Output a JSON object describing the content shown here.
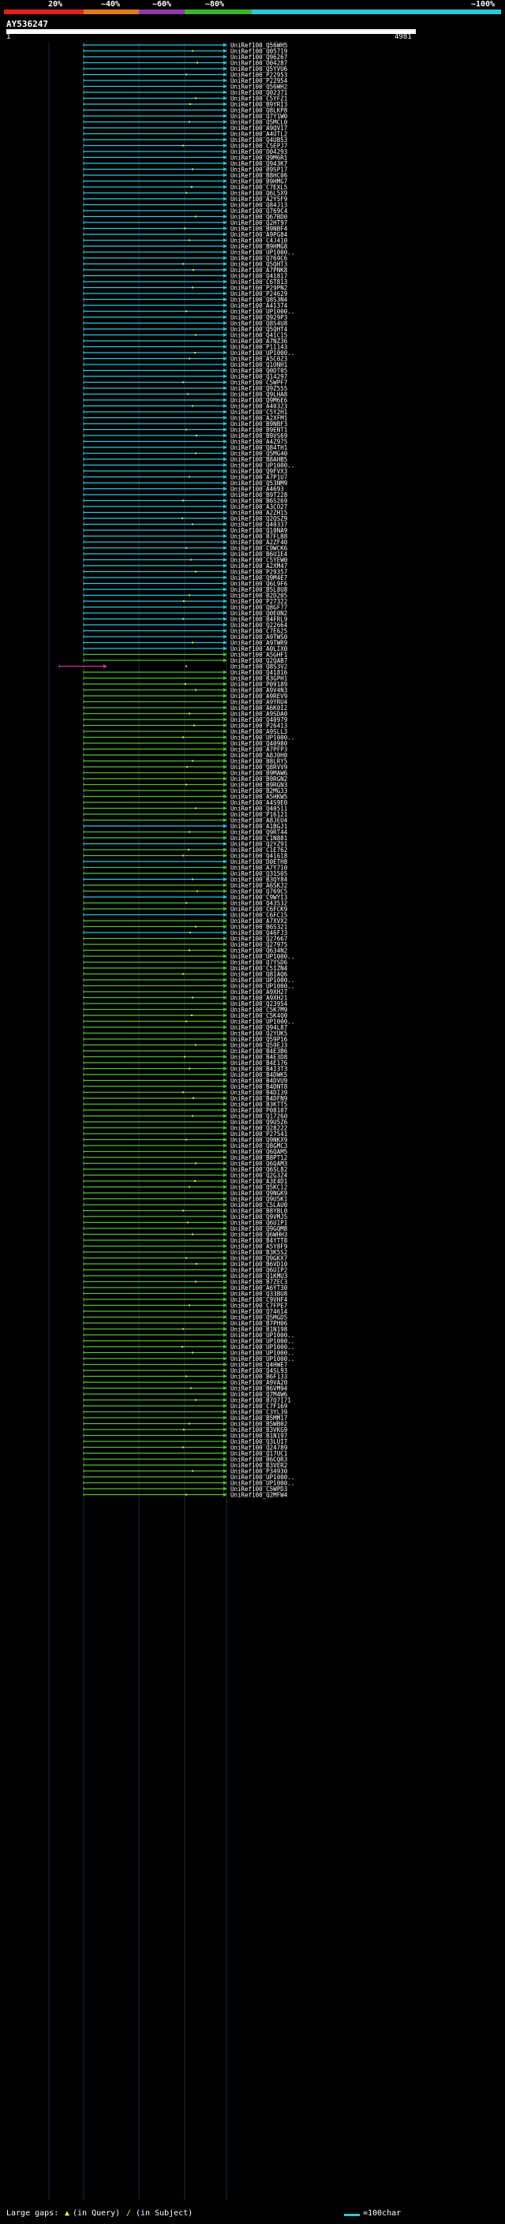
{
  "header": {
    "scale_labels": [
      "20%",
      "~40%",
      "~60%",
      "~80%",
      "~100%"
    ],
    "scale_colors": [
      "#e0221f",
      "#e07a1c",
      "#8f3aa5",
      "#3db42a",
      "#2bc6dd"
    ],
    "query_name": "AY536247",
    "tick_start": "1",
    "tick_end": "4981"
  },
  "colors": {
    "cyan": "#2bc6dd",
    "green": "#4fc131",
    "magenta": "#c3379c",
    "gap_marker": "#e8e85a",
    "label": "#ffffff"
  },
  "hits": [
    "UniRef100_Q56WH5",
    "UniRef100_Q05719",
    "UniRef100_Q96267",
    "UniRef100_O04287",
    "UniRef100_Q5YVU6",
    "UniRef100_P22953",
    "UniRef100_P22954",
    "UniRef100_Q56WH2",
    "UniRef100_Q02371",
    "UniRef100_C5YFZ1",
    "UniRef100_B9YRI3",
    "UniRef100_Q8LKP8",
    "UniRef100_Q7Y1W0",
    "UniRef100_Q5MCL0",
    "UniRef100_A9QV17",
    "UniRef100_A4UTL2",
    "UniRef100_Q4UB53",
    "UniRef100_C5EPJ7",
    "UniRef100_O04293",
    "UniRef100_Q9M6R1",
    "UniRef100_Q943K7",
    "UniRef100_B9SP17",
    "UniRef100_B8HC06",
    "UniRef100_B9HMG7",
    "UniRef100_C7EXL5",
    "UniRef100_Q6L5X9",
    "UniRef100_A2Y5F9",
    "UniRef100_Q84J13",
    "UniRef100_Q769C4",
    "UniRef100_Q67BD0",
    "UniRef100_Q2HT97",
    "UniRef100_B9NBF4",
    "UniRef100_A9PG84",
    "UniRef100_C4J410",
    "UniRef100_B9HMG8",
    "UniRef100_UP1000..",
    "UniRef100_Q769C6",
    "UniRef100_Q5QHT3",
    "UniRef100_A7PNK8",
    "UniRef100_Q41817",
    "UniRef100_C6T813",
    "UniRef100_P29PN2",
    "UniRef100_P24629",
    "UniRef100_Q8S3N4",
    "UniRef100_A41374",
    "UniRef100_UP1000..",
    "UniRef100_Q929P3",
    "UniRef100_Q8S4U8",
    "UniRef100_Q5QHT4",
    "UniRef100_Q41C15",
    "UniRef100_A7NZ36",
    "UniRef100_P11143",
    "UniRef100_UP1000..",
    "UniRef100_A5C0Z3",
    "UniRef100_Q1ONH1",
    "UniRef100_Q0DT05",
    "UniRef100_Q14297",
    "UniRef100_C5WPF7",
    "UniRef100_Q9Z555",
    "UniRef100_Q9LHA8",
    "UniRef100_Q9M6E6",
    "UniRef100_A40323",
    "UniRef100_C5Y2H1",
    "UniRef100_A2XFM1",
    "UniRef100_B9NBF3",
    "UniRef100_B9ENT1",
    "UniRef100_B9VS69",
    "UniRef100_A4Z975",
    "UniRef100_Q84TH1",
    "UniRef100_Q5MG40",
    "UniRef100_B8AHB5",
    "UniRef100_UP1000..",
    "UniRef100_Q9FVX3",
    "UniRef100_A7P1U7",
    "UniRef100_Q53NM9",
    "UniRef100_A4693",
    "UniRef100_B9T228",
    "UniRef100_B6S269",
    "UniRef100_A3CO27",
    "UniRef100_A2ZH15",
    "UniRef100_Q2QSZ9",
    "UniRef100_Q40337",
    "UniRef100_Q10NA9",
    "UniRef100_B7FLB8",
    "UniRef100_A2ZF40",
    "UniRef100_C9WCK6",
    "UniRef100_B6U1E4",
    "UniRef100_C5YEW0",
    "UniRef100_A2XM47",
    "UniRef100_P29357",
    "UniRef100_Q9M4E7",
    "UniRef100_Q6L9F6",
    "UniRef100_B5L8U8",
    "UniRef100_B2D205",
    "UniRef100_P27322",
    "UniRef100_Q8GF77",
    "UniRef100_Q0E0N2",
    "UniRef100_B4FRL9",
    "UniRef100_Q22664",
    "UniRef100_C7E625",
    "UniRef100_A9TWS0",
    "UniRef100_A9TWR9",
    "UniRef100_A0LIX0",
    "UniRef100_A5GHF1",
    "UniRef100_Q2QAB7",
    "UniRef100_Q8S3V2",
    "UniRef100_Q41816",
    "UniRef100_B3GPH1",
    "UniRef100_P09189",
    "UniRef100_A9V4N3",
    "UniRef100_A9REV9",
    "UniRef100_A9YRU4",
    "UniRef100_A6K0I2",
    "UniRef100_A9SDA0",
    "UniRef100_Q40979",
    "UniRef100_P26413",
    "UniRef100_A9SLL3",
    "UniRef100_UP1000..",
    "UniRef100_Q40980",
    "UniRef100_A7PFP3",
    "UniRef100_A8J0H0",
    "UniRef100_B8LRY5",
    "UniRef100_Q8RVV9",
    "UniRef100_B9MAW6",
    "UniRef100_B9RGN2",
    "UniRef100_B9RGN3",
    "UniRef100_B2MG33",
    "UniRef100_A5HKW5",
    "UniRef100_A4S9E0",
    "UniRef100_Q40511",
    "UniRef100_P16121",
    "UniRef100_A8JEU4",
    "UniRef100_A1BGJ1",
    "UniRef100_Q9RT44",
    "UniRef100_C1N881",
    "UniRef100_Q2YZ91",
    "UniRef100_C1E762",
    "UniRef100_Q41618",
    "UniRef100_D0ETH8",
    "UniRef100_A7Y710",
    "UniRef100_Q31505",
    "UniRef100_B3QY84",
    "UniRef100_A6SKJ2",
    "UniRef100_Q769C5",
    "UniRef100_C9WYI3",
    "UniRef100_Q43532",
    "UniRef100_C6FCK9",
    "UniRef100_C6FC15",
    "UniRef100_A7XVX2",
    "UniRef100_B6S321",
    "UniRef100_Q46FJ3",
    "UniRef100_Q27667",
    "UniRef100_Q27975",
    "UniRef100_Q634N2",
    "UniRef100_UP1000..",
    "UniRef100_Q7YSD6",
    "UniRef100_C5IZN4",
    "UniRef100_Q8IAQ6",
    "UniRef100_UP1000..",
    "UniRef100_UP1000..",
    "UniRef100_A9XH27",
    "UniRef100_A9XH21",
    "UniRef100_Q23954",
    "UniRef100_C5K7M9",
    "UniRef100_C5K4Q0",
    "UniRef100_UP1000..",
    "UniRef100_Q94L87",
    "UniRef100_Q2YUK5",
    "UniRef100_Q59P16",
    "UniRef100_Q59EJ3",
    "UniRef100_B4E3B6",
    "UniRef100_B4E3D8",
    "UniRef100_B4E176",
    "UniRef100_B4I3T3",
    "UniRef100_B4DWK5",
    "UniRef100_B4DVU9",
    "UniRef100_B4DNT8",
    "UniRef100_B4DI39",
    "UniRef100_B4DFN9",
    "UniRef100_B3KTT5",
    "UniRef100_P08107",
    "UniRef100_Q17260",
    "UniRef100_Q9U5Z6",
    "UniRef100_Q28222",
    "UniRef100_P27541",
    "UniRef100_Q9NKX9",
    "UniRef100_Q8GMC3",
    "UniRef100_Q6QAM5",
    "UniRef100_B8PT12",
    "UniRef100_Q6QAM3",
    "UniRef100_Q6SL82",
    "UniRef100_Q2G3Z4",
    "UniRef100_A3E4D1",
    "UniRef100_Q5KC12",
    "UniRef100_Q9NGK9",
    "UniRef100_Q9U5K1",
    "UniRef100_C5LAU0",
    "UniRef100_B8YBL0",
    "UniRef100_Q9VMJ5",
    "UniRef100_Q6UIP1",
    "UniRef100_Q9GQM8",
    "UniRef100_Q6WHH3",
    "UniRef100_B4YTT8",
    "UniRef100_A5Y8F9",
    "UniRef100_B3K5S2",
    "UniRef100_Q9GKX7",
    "UniRef100_B6VD10",
    "UniRef100_Q6UIP2",
    "UniRef100_Q1KMU3",
    "UniRef100_B7ZEC3",
    "UniRef100_A6YT30",
    "UniRef100_Q33BU8",
    "UniRef100_C9VHF4",
    "UniRef100_C7FPE7",
    "UniRef100_Q74614",
    "UniRef100_Q5MGD5",
    "UniRef100_B7PH06",
    "UniRef100_B1N198",
    "UniRef100_UP1000..",
    "UniRef100_UP1000..",
    "UniRef100_UP1000..",
    "UniRef100_UP1000..",
    "UniRef100_UP1000..",
    "UniRef100_Q4HWE7",
    "UniRef100_Q4SL93",
    "UniRef100_B6F133",
    "UniRef100_A9VA20",
    "UniRef100_B6VM94",
    "UniRef100_Q7M4W6",
    "UniRef100_B7Q7I71",
    "UniRef100_C7F169",
    "UniRef100_C3YL39",
    "UniRef100_B5MM17",
    "UniRef100_B5WB02",
    "UniRef100_B3VKG9",
    "UniRef100_B1N197",
    "UniRef100_Q3LUI7",
    "UniRef100_Q24789",
    "UniRef100_Q17UC1",
    "UniRef100_B6CQR3",
    "UniRef100_B3VER2",
    "UniRef100_P34930",
    "UniRef100_UP1000..",
    "UniRef100_UP1000..",
    "UniRef100_C5WPD3",
    "UniRef100_Q2MFW4"
  ],
  "footer": {
    "large_gaps_label": "Large gaps:",
    "query_gap_text": "(in Query)",
    "subject_gap_text": "(in Subject)",
    "scale_text": "=100char"
  }
}
